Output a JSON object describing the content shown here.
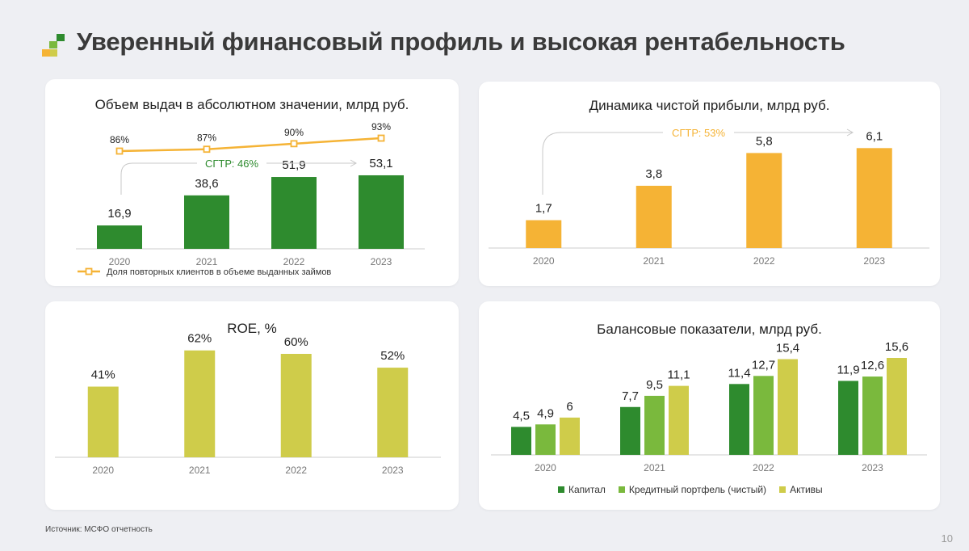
{
  "page": {
    "title": "Уверенный финансовый профиль и высокая рентабельность",
    "source": "Источник: МСФО отчетность",
    "page_number": "10"
  },
  "colors": {
    "green_dark": "#2e8b2e",
    "green_light": "#7ab93d",
    "olive": "#cfcc4a",
    "orange": "#f5b335",
    "axis": "#cccccc",
    "tick": "#777777"
  },
  "chart_data": [
    {
      "id": "issuance",
      "type": "bar",
      "title": "Объем выдач в абсолютном значении, млрд руб.",
      "categories": [
        "2020",
        "2021",
        "2022",
        "2023"
      ],
      "values": [
        16.9,
        38.6,
        51.9,
        53.1
      ],
      "value_labels": [
        "16,9",
        "38,6",
        "51,9",
        "53,1"
      ],
      "ylim": [
        0,
        70
      ],
      "color": "#2e8b2e",
      "cagr_label": "СГТР: 46%",
      "line_series": {
        "name": "Доля повторных клиентов в объеме выданных займов",
        "values": [
          86,
          87,
          90,
          93
        ],
        "value_labels": [
          "86%",
          "87%",
          "90%",
          "93%"
        ],
        "color": "#f5b335"
      },
      "legend": "bottom"
    },
    {
      "id": "net_profit",
      "type": "bar",
      "title": "Динамика чистой прибыли, млрд руб.",
      "categories": [
        "2020",
        "2021",
        "2022",
        "2023"
      ],
      "values": [
        1.7,
        3.8,
        5.8,
        6.1
      ],
      "value_labels": [
        "1,7",
        "3,8",
        "5,8",
        "6,1"
      ],
      "ylim": [
        0,
        7.2
      ],
      "color": "#f5b335",
      "cagr_label": "СГТР: 53%"
    },
    {
      "id": "roe",
      "type": "bar",
      "title": "ROE, %",
      "categories": [
        "2020",
        "2021",
        "2022",
        "2023"
      ],
      "values": [
        41,
        62,
        60,
        52
      ],
      "value_labels": [
        "41%",
        "62%",
        "60%",
        "52%"
      ],
      "ylim": [
        0,
        75
      ],
      "color": "#cfcc4a"
    },
    {
      "id": "balance",
      "type": "bar",
      "title": "Балансовые показатели, млрд руб.",
      "categories": [
        "2020",
        "2021",
        "2022",
        "2023"
      ],
      "series": [
        {
          "name": "Капитал",
          "values": [
            4.5,
            7.7,
            11.4,
            11.9
          ],
          "value_labels": [
            "4,5",
            "7,7",
            "11,4",
            "11,9"
          ],
          "color": "#2e8b2e"
        },
        {
          "name": "Кредитный портфель (чистый)",
          "values": [
            4.9,
            9.5,
            12.7,
            12.6
          ],
          "value_labels": [
            "4,9",
            "9,5",
            "12,7",
            "12,6"
          ],
          "color": "#7ab93d"
        },
        {
          "name": "Активы",
          "values": [
            6,
            11.1,
            15.4,
            15.6
          ],
          "value_labels": [
            "6",
            "11,1",
            "15,4",
            "15,6"
          ],
          "color": "#cfcc4a"
        }
      ],
      "ylim": [
        0,
        19.5
      ],
      "legend": "bottom"
    }
  ]
}
